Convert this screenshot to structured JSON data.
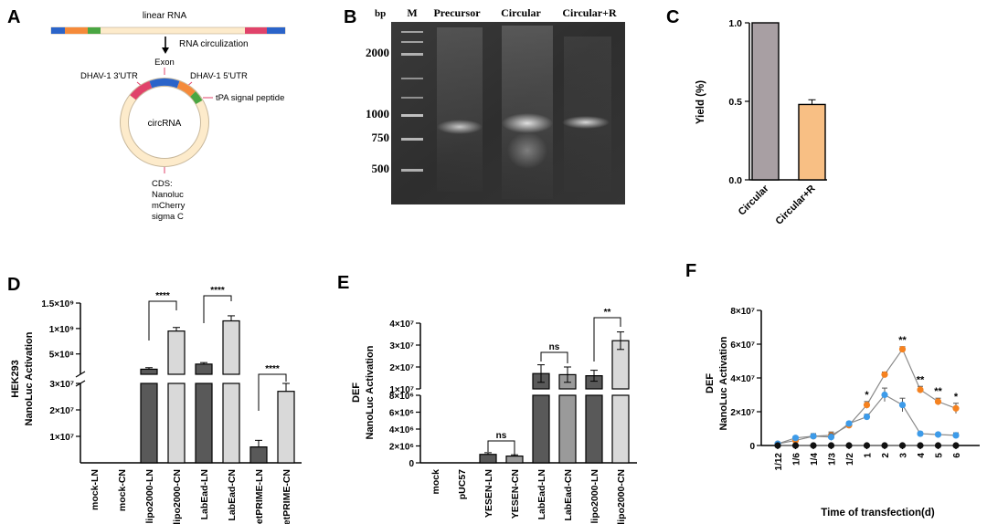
{
  "colors": {
    "bar_dark": "#595959",
    "bar_light": "#d9d9d9",
    "bar_mid": "#9a9a9a",
    "circular_bar": "#a89fa3",
    "circular_r_bar": "#f8bf84",
    "series_orange": "#f58220",
    "series_blue": "#3d9be9",
    "series_black": "#111111",
    "ring": "#fdebcb"
  },
  "panel_a": {
    "letter": "A",
    "linear_label": "linear RNA",
    "arrow_label": "RNA circulization",
    "exon": "Exon",
    "utr3": "DHAV-1 3'UTR",
    "utr5": "DHAV-1 5'UTR",
    "tpa": "tPA signal peptide",
    "center": "circRNA",
    "cds_lines": [
      "CDS:",
      "Nanoluc",
      "mCherry",
      "sigma C"
    ]
  },
  "panel_b": {
    "letter": "B",
    "bp": "bp",
    "marker": "M",
    "lanes": [
      "Precursor",
      "Circular",
      "Circular+R"
    ],
    "ladder": [
      "2000",
      "1000",
      "750",
      "500"
    ]
  },
  "chart_data": [
    {
      "panel": "C",
      "type": "bar",
      "categories": [
        "Circular",
        "Circular+R"
      ],
      "values": [
        1.0,
        0.48
      ],
      "errors": [
        0,
        0.03
      ],
      "ylabel": "Yield (%)",
      "ylim": [
        0,
        1.0
      ],
      "yticks": [
        "0.0",
        "0.5",
        "1.0"
      ]
    },
    {
      "panel": "D",
      "type": "bar",
      "ylabel_lines": [
        "HEK293",
        "NanoLuc Activation"
      ],
      "categories": [
        "mock-LN",
        "mock-CN",
        "lipo2000-LN",
        "lipo2000-CN",
        "LabEad-LN",
        "LabEad-CN",
        "jetPRIME-LN",
        "jetPRIME-CN"
      ],
      "values": [
        0,
        0,
        200000000,
        950000000,
        300000000,
        1150000000,
        6000000,
        27000000
      ],
      "errors": [
        0,
        0,
        30000000,
        70000000,
        30000000,
        100000000,
        2500000,
        4000000
      ],
      "axis_break": true,
      "yticks_upper": [
        "5×10⁸",
        "1×10⁹",
        "1.5×10⁹"
      ],
      "yticks_lower": [
        "1×10⁷",
        "2×10⁷",
        "3×10⁷"
      ],
      "significance": [
        "****",
        "****",
        "****"
      ]
    },
    {
      "panel": "E",
      "type": "bar",
      "ylabel_lines": [
        "DEF",
        "NanoLuc Activation"
      ],
      "categories": [
        "mock",
        "pUC57",
        "YESEN-LN",
        "YESEN-CN",
        "LabEad-LN",
        "LabEad-CN",
        "lipo2000-LN",
        "lipo2000-CN"
      ],
      "values": [
        0,
        0,
        1000000,
        800000,
        17000000,
        16500000,
        16000000,
        32000000
      ],
      "errors": [
        0,
        0,
        200000,
        150000,
        4000000,
        3500000,
        2500000,
        4000000
      ],
      "axis_break": true,
      "yticks_lower": [
        "0",
        "2×10⁶",
        "4×10⁶",
        "6×10⁶",
        "8×10⁶"
      ],
      "yticks_upper": [
        "1×10⁷",
        "2×10⁷",
        "3×10⁷",
        "4×10⁷"
      ],
      "significance": [
        "ns",
        "ns",
        "**"
      ]
    },
    {
      "panel": "F",
      "type": "line",
      "ylabel_lines": [
        "DEF",
        "NanoLuc Activation"
      ],
      "xlabel": "Time of transfection(d)",
      "categories": [
        "1/12",
        "1/6",
        "1/4",
        "1/3",
        "1/2",
        "1",
        "2",
        "3",
        "4",
        "5",
        "6"
      ],
      "series": [
        {
          "values": [
            1000000,
            3000000,
            5500000,
            6000000,
            12000000,
            24000000,
            42000000,
            57000000,
            33000000,
            26000000,
            22000000
          ],
          "errors": [
            400000,
            700000,
            1500000,
            2000000,
            1000000,
            2000000,
            1500000,
            1500000,
            2000000,
            2000000,
            3000000
          ]
        },
        {
          "values": [
            1000000,
            4500000,
            5500000,
            5000000,
            13000000,
            17000000,
            30000000,
            24000000,
            7000000,
            6500000,
            6000000
          ],
          "errors": [
            400000,
            700000,
            1500000,
            2000000,
            1000000,
            1500000,
            4000000,
            4000000,
            1000000,
            700000,
            1500000
          ]
        },
        {
          "values": [
            0,
            0,
            0,
            0,
            0,
            0,
            0,
            0,
            0,
            0,
            0
          ],
          "errors": [
            0,
            0,
            0,
            0,
            0,
            0,
            0,
            0,
            0,
            0,
            0
          ]
        }
      ],
      "ylim": [
        0,
        80000000
      ],
      "yticks": [
        "0",
        "2×10⁷",
        "4×10⁷",
        "6×10⁷",
        "8×10⁷"
      ],
      "significance": [
        {
          "at": "1",
          "mark": "*"
        },
        {
          "at": "3",
          "mark": "**"
        },
        {
          "at": "4",
          "mark": "**"
        },
        {
          "at": "5",
          "mark": "**"
        },
        {
          "at": "6",
          "mark": "*"
        }
      ]
    }
  ]
}
